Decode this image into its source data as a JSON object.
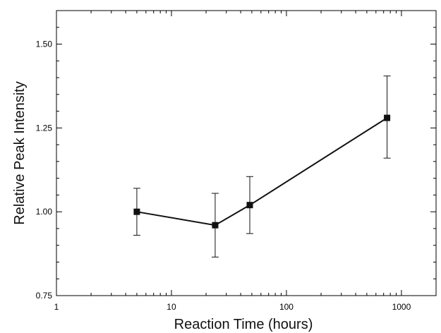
{
  "chart_data": {
    "type": "line",
    "xlabel": "Reaction Time (hours)",
    "ylabel": "Relative Peak Intensity",
    "x_scale": "log",
    "xlim": [
      1,
      2000
    ],
    "ylim": [
      0.75,
      1.6
    ],
    "x_ticks": [
      {
        "value": 1,
        "label": "1"
      },
      {
        "value": 10,
        "label": "10"
      },
      {
        "value": 100,
        "label": "100"
      },
      {
        "value": 1000,
        "label": "1000"
      }
    ],
    "y_ticks": [
      {
        "value": 0.75,
        "label": "0.75"
      },
      {
        "value": 1.0,
        "label": "1.00"
      },
      {
        "value": 1.25,
        "label": "1.25"
      },
      {
        "value": 1.5,
        "label": "1.50"
      }
    ],
    "grid": false,
    "series": [
      {
        "marker": "square",
        "color": "#111111",
        "points": [
          {
            "x": 5,
            "y": 1.0,
            "err_low": 0.93,
            "err_high": 1.07
          },
          {
            "x": 24,
            "y": 0.96,
            "err_low": 0.865,
            "err_high": 1.055
          },
          {
            "x": 48,
            "y": 1.02,
            "err_low": 0.935,
            "err_high": 1.105
          },
          {
            "x": 750,
            "y": 1.28,
            "err_low": 1.16,
            "err_high": 1.405
          }
        ]
      }
    ]
  }
}
